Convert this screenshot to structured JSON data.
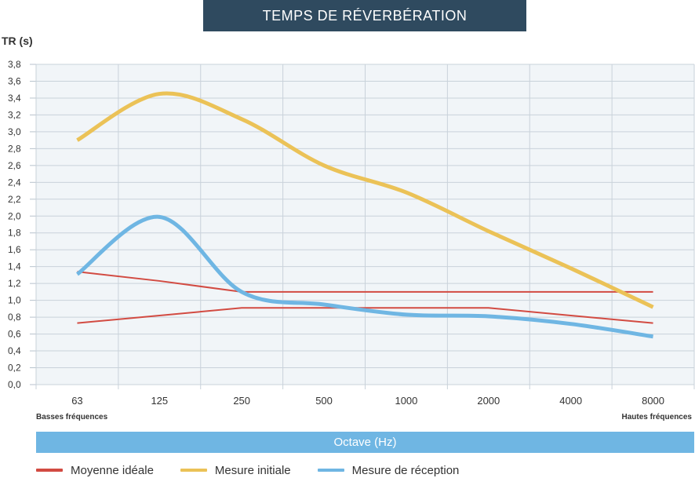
{
  "chart_data": {
    "type": "line",
    "title": "TEMPS DE RÉVERBÉRATION",
    "ylabel": "TR (s)",
    "xlabel": "Octave (Hz)",
    "x_note_left": "Basses fréquences",
    "x_note_right": "Hautes fréquences",
    "categories": [
      "63",
      "125",
      "250",
      "500",
      "1000",
      "2000",
      "4000",
      "8000"
    ],
    "ylim": [
      0,
      3.8
    ],
    "yticks": [
      "0,0",
      "0,2",
      "0,4",
      "0,6",
      "0,8",
      "1,0",
      "1,2",
      "1,4",
      "1,6",
      "1,8",
      "2,0",
      "2,2",
      "2,4",
      "2,6",
      "2,8",
      "3,0",
      "3,2",
      "3,4",
      "3,6",
      "3,8"
    ],
    "grid": true,
    "legend_position": "bottom",
    "series": [
      {
        "name": "Moyenne idéale",
        "color": "#d24b42",
        "band_upper": [
          1.34,
          1.23,
          1.1,
          1.1,
          1.1,
          1.1,
          1.1,
          1.1
        ],
        "band_lower": [
          0.73,
          0.82,
          0.91,
          0.91,
          0.91,
          0.91,
          0.82,
          0.73
        ]
      },
      {
        "name": "Mesure initiale",
        "color": "#ebc257",
        "values": [
          2.9,
          3.45,
          3.15,
          2.6,
          2.28,
          1.82,
          1.38,
          0.92
        ]
      },
      {
        "name": "Mesure de réception",
        "color": "#6fb6e3",
        "values": [
          1.31,
          1.99,
          1.1,
          0.95,
          0.83,
          0.81,
          0.72,
          0.57
        ]
      }
    ]
  }
}
